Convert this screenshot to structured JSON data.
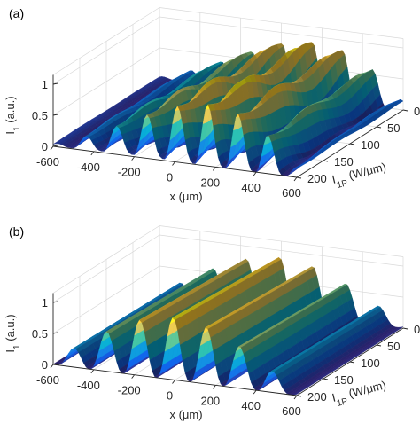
{
  "figure": {
    "panels": [
      {
        "label": "(a)",
        "chart_data": {
          "type": "surface",
          "x_label_main": "x",
          "x_label_unit": "(μm)",
          "z_label_main": "I",
          "z_label_sub": "1",
          "z_label_unit": "(a.u.)",
          "y_label_main": "I",
          "y_label_sub": "1P",
          "y_label_unit": "(W/μm)",
          "x_ticks": [
            "-600",
            "-400",
            "-200",
            "0",
            "200",
            "400",
            "600"
          ],
          "x_tick_values": [
            -600,
            -400,
            -200,
            0,
            200,
            400,
            600
          ],
          "y_ticks": [
            "0",
            "50",
            "100",
            "150",
            "200"
          ],
          "y_tick_values": [
            0,
            50,
            100,
            150,
            200
          ],
          "z_ticks": [
            "0",
            "0.5",
            "1"
          ],
          "z_tick_values": [
            0,
            0.5,
            1
          ],
          "xlim": [
            -600,
            600
          ],
          "ylim": [
            0,
            200
          ],
          "zlim": [
            0,
            1
          ],
          "ridge_count": 8,
          "ridge_spacing": 150,
          "peak_x": 150,
          "peak_z": 1.0,
          "profile": "irregular"
        }
      },
      {
        "label": "(b)",
        "chart_data": {
          "type": "surface",
          "x_label_main": "x",
          "x_label_unit": "(μm)",
          "z_label_main": "I",
          "z_label_sub": "1",
          "z_label_unit": "(a.u.)",
          "y_label_main": "I",
          "y_label_sub": "1P",
          "y_label_unit": "(W/μm)",
          "x_ticks": [
            "-600",
            "-400",
            "-200",
            "0",
            "200",
            "400",
            "600"
          ],
          "x_tick_values": [
            -600,
            -400,
            -200,
            0,
            200,
            400,
            600
          ],
          "y_ticks": [
            "0",
            "50",
            "100",
            "150",
            "200"
          ],
          "y_tick_values": [
            0,
            50,
            100,
            150,
            200
          ],
          "z_ticks": [
            "0",
            "0.5",
            "1"
          ],
          "z_tick_values": [
            0,
            0.5,
            1
          ],
          "xlim": [
            -600,
            600
          ],
          "ylim": [
            0,
            200
          ],
          "zlim": [
            0,
            1
          ],
          "ridge_count": 7,
          "ridge_spacing": 165,
          "peak_x": 0,
          "peak_z": 1.0,
          "profile": "smooth"
        }
      }
    ],
    "colormap": [
      "#352a87",
      "#0f5cdd",
      "#1481d6",
      "#06a4ca",
      "#2eb7a4",
      "#87bf77",
      "#d1bb59",
      "#fec832",
      "#f9fb0e"
    ]
  }
}
